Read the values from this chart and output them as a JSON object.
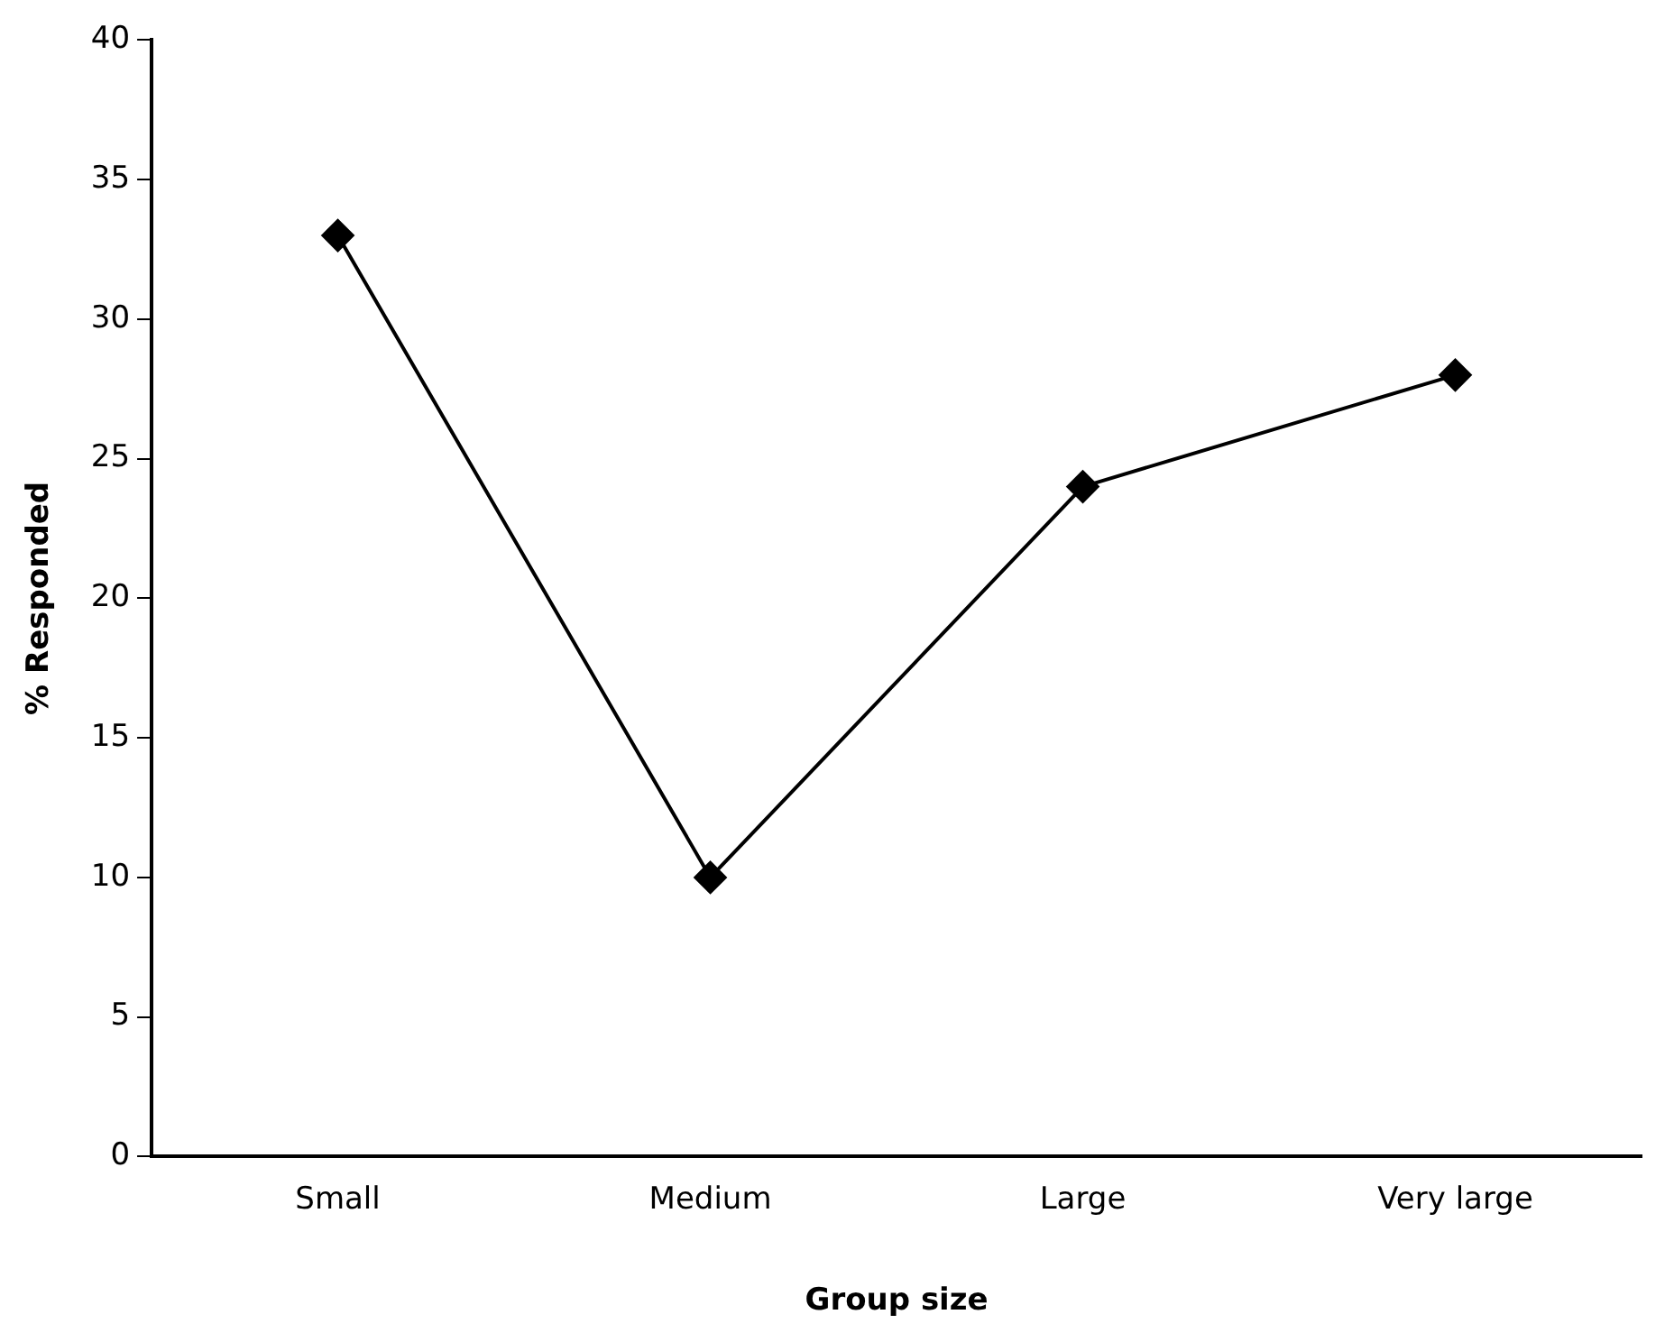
{
  "chart_data": {
    "type": "line",
    "xlabel": "Group size",
    "ylabel": "% Responded",
    "categories": [
      "Small",
      "Medium",
      "Large",
      "Very large"
    ],
    "series": [
      {
        "color": "#000000",
        "values": [
          33,
          10,
          24,
          28
        ]
      }
    ],
    "ylim": [
      0,
      40
    ],
    "yticks": [
      0,
      5,
      10,
      15,
      20,
      25,
      30,
      35,
      40
    ],
    "grid": false,
    "marker": "diamond",
    "line_style": "solid"
  }
}
